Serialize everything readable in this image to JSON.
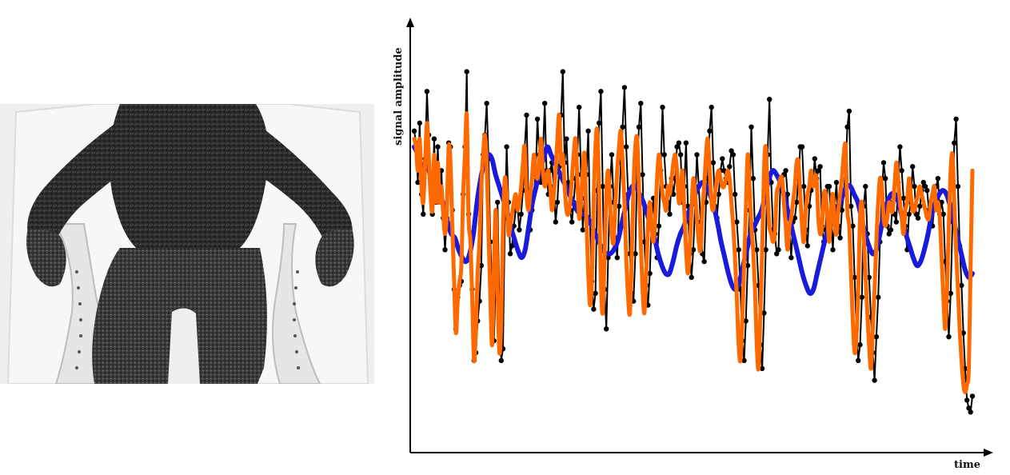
{
  "photo": {
    "icon": "seated-person-thermal-photo",
    "colors": {
      "background": "#f2f2f2",
      "figure": "#2a2a2a",
      "chair": "#e8e8e8"
    }
  },
  "chart_data": {
    "type": "line",
    "xlabel": "time",
    "ylabel": "signal amplitude",
    "grid": false,
    "axes": "arrows, no ticks",
    "series": [
      {
        "color": "#000000",
        "style": "line-with-markers",
        "values": [
          0.76,
          0.73,
          0.63,
          0.78,
          0.6,
          0.55,
          0.69,
          0.86,
          0.75,
          0.63,
          0.55,
          0.74,
          0.58,
          0.72,
          0.58,
          0.66,
          0.54,
          0.46,
          0.54,
          0.73,
          0.72,
          0.56,
          0.36,
          0.26,
          0.34,
          0.37,
          0.38,
          0.6,
          0.72,
          0.91,
          0.55,
          0.5,
          0.36,
          0.18,
          0.2,
          0.28,
          0.33,
          0.42,
          0.7,
          0.75,
          0.83,
          0.69,
          0.48,
          0.36,
          0.23,
          0.39,
          0.58,
          0.31,
          0.18,
          0.21,
          0.54,
          0.72,
          0.58,
          0.45,
          0.47,
          0.52,
          0.56,
          0.57,
          0.51,
          0.55,
          0.61,
          0.72,
          0.8,
          0.57,
          0.51,
          0.56,
          0.6,
          0.65,
          0.79,
          0.7,
          0.63,
          0.7,
          0.83,
          0.66,
          0.6,
          0.66,
          0.68,
          0.62,
          0.53,
          0.58,
          0.67,
          0.8,
          0.91,
          0.68,
          0.74,
          0.63,
          0.56,
          0.53,
          0.58,
          0.64,
          0.7,
          0.82,
          0.65,
          0.51,
          0.59,
          0.65,
          0.76,
          0.53,
          0.38,
          0.31,
          0.35,
          0.61,
          0.78,
          0.86,
          0.62,
          0.36,
          0.26,
          0.44,
          0.62,
          0.7,
          0.58,
          0.49,
          0.44,
          0.57,
          0.68,
          0.77,
          0.87,
          0.72,
          0.6,
          0.45,
          0.35,
          0.33,
          0.45,
          0.67,
          0.77,
          0.83,
          0.65,
          0.48,
          0.37,
          0.32,
          0.4,
          0.53,
          0.59,
          0.5,
          0.44,
          0.52,
          0.66,
          0.82,
          0.7,
          0.62,
          0.58,
          0.55,
          0.64,
          0.6,
          0.64,
          0.72,
          0.73,
          0.7,
          0.58,
          0.62,
          0.73,
          0.57,
          0.45,
          0.39,
          0.46,
          0.58,
          0.7,
          0.62,
          0.53,
          0.45,
          0.43,
          0.58,
          0.64,
          0.76,
          0.82,
          0.68,
          0.57,
          0.54,
          0.6,
          0.66,
          0.69,
          0.66,
          0.64,
          0.63,
          0.67,
          0.71,
          0.7,
          0.6,
          0.53,
          0.46,
          0.36,
          0.23,
          0.18,
          0.28,
          0.42,
          0.56,
          0.77,
          0.64,
          0.51,
          0.46,
          0.37,
          0.22,
          0.16,
          0.3,
          0.46,
          0.7,
          0.84,
          0.63,
          0.51,
          0.5,
          0.45,
          0.46,
          0.62,
          0.62,
          0.65,
          0.66,
          0.6,
          0.51,
          0.44,
          0.53,
          0.54,
          0.58,
          0.64,
          0.72,
          0.72,
          0.62,
          0.51,
          0.47,
          0.57,
          0.61,
          0.63,
          0.69,
          0.64,
          0.66,
          0.67,
          0.52,
          0.48,
          0.51,
          0.62,
          0.62,
          0.54,
          0.46,
          0.57,
          0.63,
          0.52,
          0.49,
          0.56,
          0.6,
          0.66,
          0.77,
          0.81,
          0.57,
          0.52,
          0.39,
          0.26,
          0.18,
          0.22,
          0.34,
          0.57,
          0.62,
          0.5,
          0.39,
          0.29,
          0.2,
          0.13,
          0.24,
          0.34,
          0.48,
          0.6,
          0.68,
          0.64,
          0.52,
          0.5,
          0.51,
          0.58,
          0.55,
          0.53,
          0.63,
          0.72,
          0.66,
          0.59,
          0.52,
          0.46,
          0.55,
          0.58,
          0.67,
          0.62,
          0.55,
          0.54,
          0.57,
          0.61,
          0.63,
          0.62,
          0.61,
          0.56,
          0.53,
          0.52,
          0.57,
          0.62,
          0.64,
          0.55,
          0.58,
          0.55,
          0.43,
          0.33,
          0.24,
          0.35,
          0.53,
          0.73,
          0.79,
          0.62,
          0.47,
          0.37,
          0.25,
          0.16,
          0.08,
          0.06,
          0.05,
          0.09
        ]
      },
      {
        "color": "#1a1adb",
        "style": "smooth-thick",
        "values": [
          0.72,
          0.7,
          0.66,
          0.68,
          0.66,
          0.62,
          0.61,
          0.6,
          0.57,
          0.53,
          0.5,
          0.49,
          0.46,
          0.44,
          0.43,
          0.45,
          0.5,
          0.58,
          0.64,
          0.68,
          0.7,
          0.69,
          0.65,
          0.62,
          0.59,
          0.56,
          0.52,
          0.49,
          0.46,
          0.44,
          0.46,
          0.52,
          0.58,
          0.62,
          0.66,
          0.69,
          0.72,
          0.7,
          0.68,
          0.66,
          0.64,
          0.62,
          0.6,
          0.58,
          0.56,
          0.55,
          0.55,
          0.54,
          0.52,
          0.5,
          0.48,
          0.46,
          0.45,
          0.45,
          0.46,
          0.48,
          0.52,
          0.56,
          0.6,
          0.62,
          0.62,
          0.6,
          0.58,
          0.55,
          0.52,
          0.49,
          0.45,
          0.42,
          0.4,
          0.4,
          0.43,
          0.47,
          0.5,
          0.52,
          0.55,
          0.57,
          0.6,
          0.62,
          0.63,
          0.62,
          0.6,
          0.57,
          0.53,
          0.48,
          0.44,
          0.4,
          0.37,
          0.36,
          0.38,
          0.42,
          0.46,
          0.5,
          0.52,
          0.54,
          0.56,
          0.6,
          0.64,
          0.66,
          0.65,
          0.63,
          0.6,
          0.56,
          0.52,
          0.48,
          0.44,
          0.4,
          0.37,
          0.35,
          0.36,
          0.4,
          0.44,
          0.48,
          0.51,
          0.53,
          0.55,
          0.57,
          0.6,
          0.62,
          0.62,
          0.6,
          0.58,
          0.54,
          0.5,
          0.47,
          0.45,
          0.46,
          0.5,
          0.55,
          0.58,
          0.6,
          0.6,
          0.58,
          0.54,
          0.5,
          0.47,
          0.44,
          0.42,
          0.43,
          0.46,
          0.5,
          0.55,
          0.58,
          0.6,
          0.61,
          0.6,
          0.57,
          0.53,
          0.49,
          0.45,
          0.41,
          0.39,
          0.4
        ]
      },
      {
        "color": "#ff6a00",
        "style": "smooth-thick",
        "values": [
          0.74,
          0.72,
          0.66,
          0.74,
          0.62,
          0.58,
          0.68,
          0.78,
          0.7,
          0.6,
          0.56,
          0.7,
          0.58,
          0.68,
          0.58,
          0.62,
          0.55,
          0.5,
          0.56,
          0.72,
          0.68,
          0.52,
          0.38,
          0.25,
          0.33,
          0.38,
          0.42,
          0.6,
          0.7,
          0.8,
          0.54,
          0.48,
          0.34,
          0.18,
          0.26,
          0.4,
          0.48,
          0.62,
          0.7,
          0.75,
          0.68,
          0.5,
          0.34,
          0.22,
          0.42,
          0.56,
          0.36,
          0.2,
          0.28,
          0.52,
          0.64,
          0.6,
          0.5,
          0.52,
          0.55,
          0.58,
          0.6,
          0.56,
          0.58,
          0.62,
          0.68,
          0.72,
          0.6,
          0.56,
          0.6,
          0.64,
          0.7,
          0.66,
          0.64,
          0.68,
          0.74,
          0.66,
          0.62,
          0.64,
          0.66,
          0.62,
          0.56,
          0.6,
          0.66,
          0.74,
          0.8,
          0.68,
          0.7,
          0.62,
          0.56,
          0.55,
          0.58,
          0.64,
          0.7,
          0.74,
          0.64,
          0.54,
          0.58,
          0.66,
          0.7,
          0.54,
          0.4,
          0.32,
          0.38,
          0.58,
          0.72,
          0.76,
          0.6,
          0.38,
          0.3,
          0.44,
          0.6,
          0.66,
          0.58,
          0.5,
          0.48,
          0.58,
          0.66,
          0.72,
          0.76,
          0.68,
          0.58,
          0.44,
          0.34,
          0.3,
          0.44,
          0.62,
          0.72,
          0.74,
          0.62,
          0.48,
          0.36,
          0.3,
          0.4,
          0.52,
          0.58,
          0.52,
          0.48,
          0.54,
          0.64,
          0.7,
          0.66,
          0.6,
          0.58,
          0.56,
          0.62,
          0.6,
          0.64,
          0.68,
          0.7,
          0.66,
          0.58,
          0.6,
          0.66,
          0.56,
          0.46,
          0.4,
          0.46,
          0.56,
          0.64,
          0.6,
          0.54,
          0.48,
          0.46,
          0.56,
          0.62,
          0.7,
          0.74,
          0.66,
          0.58,
          0.56,
          0.6,
          0.64,
          0.66,
          0.64,
          0.62,
          0.62,
          0.64,
          0.66,
          0.64,
          0.58,
          0.52,
          0.44,
          0.34,
          0.22,
          0.18,
          0.28,
          0.42,
          0.56,
          0.7,
          0.62,
          0.52,
          0.46,
          0.36,
          0.22,
          0.16,
          0.3,
          0.46,
          0.66,
          0.72,
          0.6,
          0.52,
          0.5,
          0.48,
          0.5,
          0.6,
          0.62,
          0.64,
          0.64,
          0.58,
          0.52,
          0.46,
          0.52,
          0.54,
          0.58,
          0.62,
          0.68,
          0.68,
          0.6,
          0.52,
          0.48,
          0.56,
          0.6,
          0.62,
          0.66,
          0.62,
          0.64,
          0.64,
          0.54,
          0.5,
          0.52,
          0.6,
          0.6,
          0.54,
          0.48,
          0.56,
          0.6,
          0.52,
          0.5,
          0.56,
          0.6,
          0.64,
          0.7,
          0.72,
          0.56,
          0.52,
          0.4,
          0.28,
          0.2,
          0.24,
          0.36,
          0.54,
          0.58,
          0.5,
          0.4,
          0.3,
          0.22,
          0.16,
          0.26,
          0.36,
          0.48,
          0.58,
          0.64,
          0.62,
          0.54,
          0.52,
          0.54,
          0.58,
          0.56,
          0.56,
          0.62,
          0.68,
          0.64,
          0.58,
          0.54,
          0.5,
          0.56,
          0.58,
          0.64,
          0.6,
          0.56,
          0.56,
          0.58,
          0.6,
          0.62,
          0.6,
          0.58,
          0.56,
          0.54,
          0.54,
          0.58,
          0.6,
          0.62,
          0.56,
          0.58,
          0.54,
          0.44,
          0.34,
          0.26,
          0.36,
          0.52,
          0.66,
          0.7,
          0.58,
          0.46,
          0.36,
          0.26,
          0.18,
          0.12,
          0.1,
          0.12,
          0.16,
          0.42,
          0.66
        ]
      }
    ],
    "ylim": [
      0,
      1
    ]
  }
}
